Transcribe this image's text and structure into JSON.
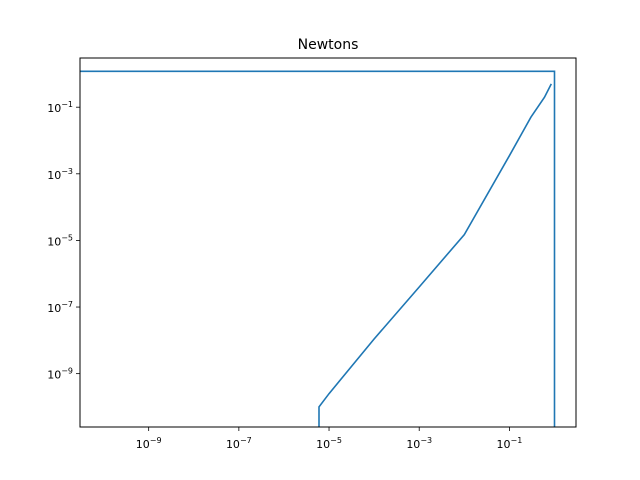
{
  "chart_data": {
    "type": "line",
    "title": "Newtons",
    "xlabel": "",
    "ylabel": "",
    "xscale": "log",
    "yscale": "log",
    "xlim": [
      3e-11,
      3
    ],
    "ylim": [
      2.5e-11,
      3
    ],
    "grid": false,
    "legend": "none",
    "x_ticks": [
      {
        "base": "10",
        "exp": "−9",
        "value": 1e-09
      },
      {
        "base": "10",
        "exp": "−7",
        "value": 1e-07
      },
      {
        "base": "10",
        "exp": "−5",
        "value": 1e-05
      },
      {
        "base": "10",
        "exp": "−3",
        "value": 0.001
      },
      {
        "base": "10",
        "exp": "−1",
        "value": 0.1
      }
    ],
    "y_ticks": [
      {
        "base": "10",
        "exp": "−1",
        "value": 0.1
      },
      {
        "base": "10",
        "exp": "−3",
        "value": 0.001
      },
      {
        "base": "10",
        "exp": "−5",
        "value": 1e-05
      },
      {
        "base": "10",
        "exp": "−7",
        "value": 1e-07
      },
      {
        "base": "10",
        "exp": "−9",
        "value": 1e-09
      }
    ],
    "series": [
      {
        "color": "#1f77b4",
        "points": [
          [
            3e-11,
            1.2
          ],
          [
            1.0,
            1.2
          ],
          [
            1.0,
            2.5e-11
          ]
        ]
      },
      {
        "color": "#1f77b4",
        "points": [
          [
            6e-06,
            2.5e-11
          ],
          [
            6e-06,
            1e-10
          ],
          [
            1e-05,
            2.5e-10
          ],
          [
            0.0001,
            1.1e-08
          ],
          [
            0.001,
            4e-07
          ],
          [
            0.01,
            1.5e-05
          ],
          [
            0.1,
            0.0035
          ],
          [
            0.3,
            0.05
          ],
          [
            0.6,
            0.2
          ],
          [
            0.85,
            0.5
          ]
        ]
      }
    ]
  }
}
